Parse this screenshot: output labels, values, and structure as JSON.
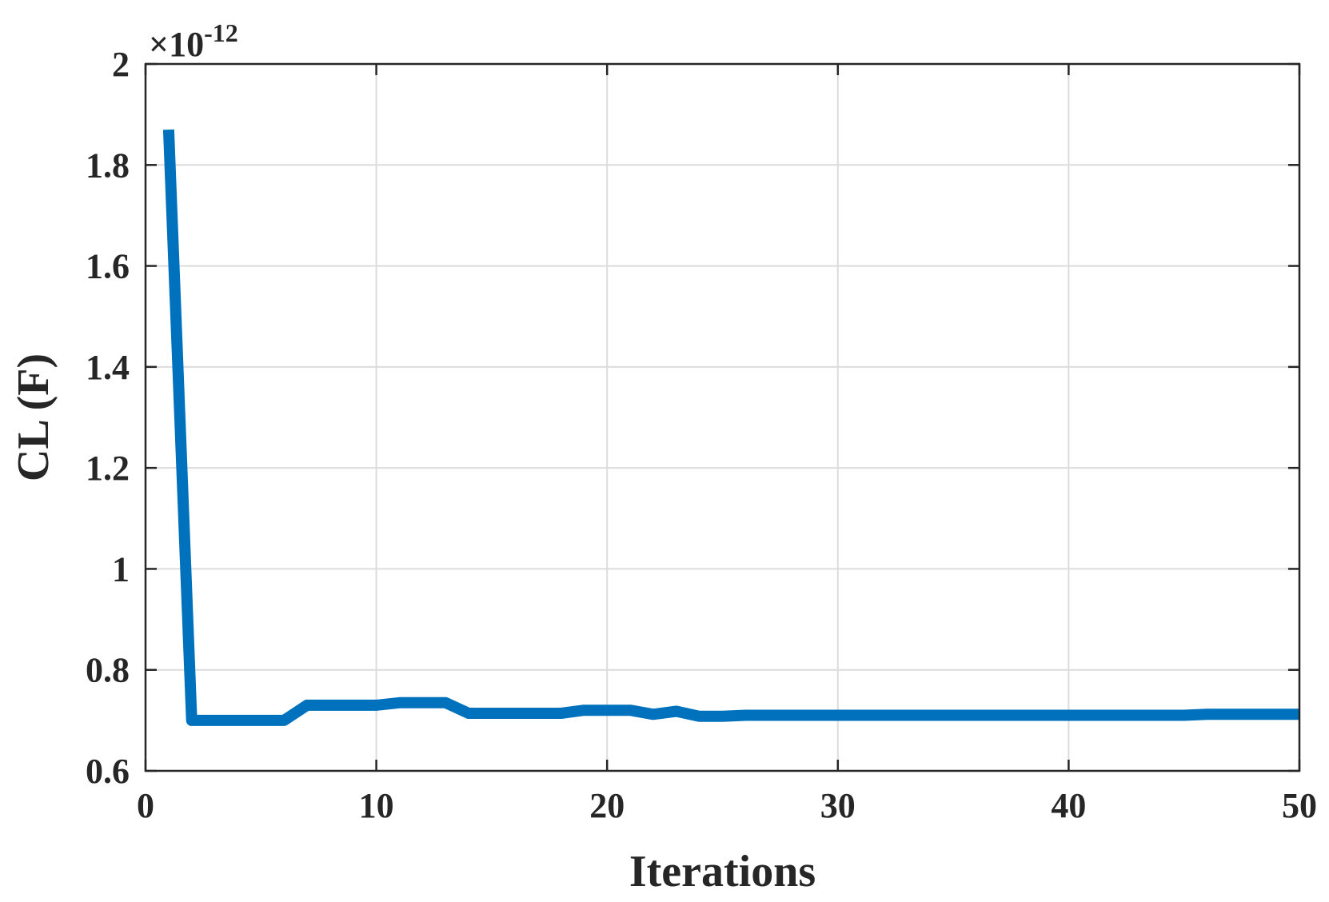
{
  "chart_data": {
    "type": "line",
    "title": "",
    "xlabel": "Iterations",
    "ylabel": "CL (F)",
    "y_exponent_label": "×10",
    "y_exponent_power": "-12",
    "xlim": [
      0,
      50
    ],
    "ylim": [
      0.6,
      2.0
    ],
    "xticks": [
      0,
      10,
      20,
      30,
      40,
      50
    ],
    "xtick_labels": [
      "0",
      "10",
      "20",
      "30",
      "40",
      "50"
    ],
    "yticks": [
      0.6,
      0.8,
      1.0,
      1.2,
      1.4,
      1.6,
      1.8,
      2.0
    ],
    "ytick_labels": [
      "0.6",
      "0.8",
      "1",
      "1.2",
      "1.4",
      "1.6",
      "1.8",
      "2"
    ],
    "grid": true,
    "series": [
      {
        "color": "#0072BD",
        "x": [
          1,
          2,
          3,
          4,
          5,
          6,
          7,
          8,
          9,
          10,
          11,
          12,
          13,
          14,
          15,
          16,
          17,
          18,
          19,
          20,
          21,
          22,
          23,
          24,
          25,
          26,
          27,
          28,
          29,
          30,
          31,
          32,
          33,
          34,
          35,
          36,
          37,
          38,
          39,
          40,
          41,
          42,
          43,
          44,
          45,
          46,
          47,
          48,
          49,
          50
        ],
        "values": [
          1.87,
          0.7,
          0.7,
          0.7,
          0.7,
          0.7,
          0.73,
          0.73,
          0.73,
          0.73,
          0.735,
          0.735,
          0.735,
          0.714,
          0.714,
          0.714,
          0.714,
          0.714,
          0.72,
          0.72,
          0.72,
          0.712,
          0.718,
          0.708,
          0.708,
          0.71,
          0.71,
          0.71,
          0.71,
          0.71,
          0.71,
          0.71,
          0.71,
          0.71,
          0.71,
          0.71,
          0.71,
          0.71,
          0.71,
          0.71,
          0.71,
          0.71,
          0.71,
          0.71,
          0.71,
          0.712,
          0.712,
          0.712,
          0.712,
          0.712
        ]
      }
    ]
  }
}
